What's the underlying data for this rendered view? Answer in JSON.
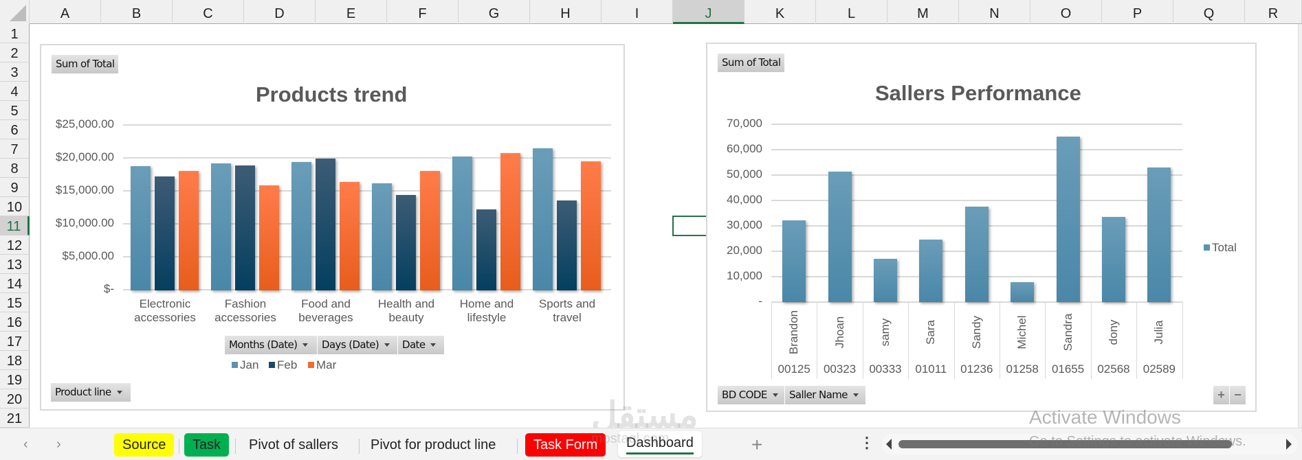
{
  "sheet": {
    "columns": [
      "A",
      "B",
      "C",
      "D",
      "E",
      "F",
      "G",
      "H",
      "I",
      "J",
      "K",
      "L",
      "M",
      "N",
      "O",
      "P",
      "Q",
      "R"
    ],
    "rows": [
      "1",
      "2",
      "3",
      "4",
      "5",
      "6",
      "7",
      "8",
      "9",
      "10",
      "11",
      "12",
      "13",
      "14",
      "15",
      "16",
      "17",
      "18",
      "19",
      "20",
      "21"
    ],
    "selected_cell": "J11",
    "selected_column": "J",
    "selected_row": "11"
  },
  "chart1": {
    "value_button": "Sum of Total",
    "title": "Products trend",
    "y_ticks": [
      "$25,000.00",
      "$20,000.00",
      "$15,000.00",
      "$10,000.00",
      "$5,000.00",
      "$-"
    ],
    "categories": [
      {
        "line1": "Electronic",
        "line2": "accessories"
      },
      {
        "line1": "Fashion",
        "line2": "accessories"
      },
      {
        "line1": "Food and",
        "line2": "beverages"
      },
      {
        "line1": "Health and",
        "line2": "beauty"
      },
      {
        "line1": "Home and",
        "line2": "lifestyle"
      },
      {
        "line1": "Sports and",
        "line2": "travel"
      }
    ],
    "filter_buttons": [
      "Months (Date)",
      "Days (Date)",
      "Date"
    ],
    "legend": [
      "Jan",
      "Feb",
      "Mar"
    ],
    "axis_button": "Product line",
    "colors": {
      "Jan": "#5b93b3",
      "Feb": "#1a4a68",
      "Mar": "#f26b2f"
    }
  },
  "chart2": {
    "value_button": "Sum of Total",
    "title": "Sallers Performance",
    "y_ticks": [
      "70,000",
      "60,000",
      "50,000",
      "40,000",
      "30,000",
      "20,000",
      "10,000",
      "-"
    ],
    "names": [
      "Brandon",
      "Jhoan",
      "samy",
      "Sara",
      "Sandy",
      "Michel",
      "Sandra",
      "dony",
      "Julia"
    ],
    "codes": [
      "00125",
      "00323",
      "00333",
      "01011",
      "01236",
      "01258",
      "01655",
      "02568",
      "02589"
    ],
    "legend": [
      "Total"
    ],
    "axis_buttons": [
      "BD CODE",
      "Saller Name"
    ],
    "zoom_plus": "+",
    "zoom_minus": "−",
    "color": "#5b93b3"
  },
  "chart_data": [
    {
      "type": "bar",
      "title": "Products trend",
      "xlabel": "Product line",
      "ylabel": "Sum of Total",
      "ylim": [
        0,
        25000
      ],
      "categories": [
        "Electronic accessories",
        "Fashion accessories",
        "Food and beverages",
        "Health and beauty",
        "Home and lifestyle",
        "Sports and travel"
      ],
      "series": [
        {
          "name": "Jan",
          "values": [
            18850,
            19300,
            19500,
            16300,
            20300,
            21600
          ]
        },
        {
          "name": "Feb",
          "values": [
            17300,
            19000,
            19950,
            14500,
            12300,
            13650
          ]
        },
        {
          "name": "Mar",
          "values": [
            18100,
            15900,
            16500,
            18150,
            20850,
            19550
          ]
        }
      ],
      "legend_position": "bottom",
      "grid": true
    },
    {
      "type": "bar",
      "title": "Sallers Performance",
      "xlabel": "BD CODE / Saller Name",
      "ylabel": "Sum of Total",
      "ylim": [
        0,
        70000
      ],
      "categories": [
        "00125 Brandon",
        "00323 Jhoan",
        "00333 samy",
        "01011 Sara",
        "01236 Sandy",
        "01258 Michel",
        "01655 Sandra",
        "02568 dony",
        "02589 Julia"
      ],
      "series": [
        {
          "name": "Total",
          "values": [
            32200,
            51400,
            17000,
            24600,
            37600,
            7800,
            65100,
            33500,
            53000
          ]
        }
      ],
      "legend_position": "right",
      "grid": true
    }
  ],
  "tabs": {
    "prev": "‹",
    "next": "›",
    "items": [
      {
        "label": "Source",
        "color": "#ffff00",
        "text_color": "#222222"
      },
      {
        "label": "Task",
        "color": "#00b050",
        "text_color": "#222222"
      },
      {
        "label": "Pivot of sallers",
        "color": "",
        "text_color": "#222222"
      },
      {
        "label": "Pivot for product line",
        "color": "",
        "text_color": "#222222"
      },
      {
        "label": "Task Form",
        "color": "#ff0000",
        "text_color": "#ffffff"
      },
      {
        "label": "Dashboard",
        "color": "#ffffff",
        "text_color": "#222222",
        "active": true
      }
    ],
    "add": "+",
    "more": "⋮"
  },
  "watermark": {
    "line1": "Activate Windows",
    "line2": "Go to Settings to activate Windows.",
    "logo": "مستقل",
    "logo_sub": "mostaql.com"
  }
}
